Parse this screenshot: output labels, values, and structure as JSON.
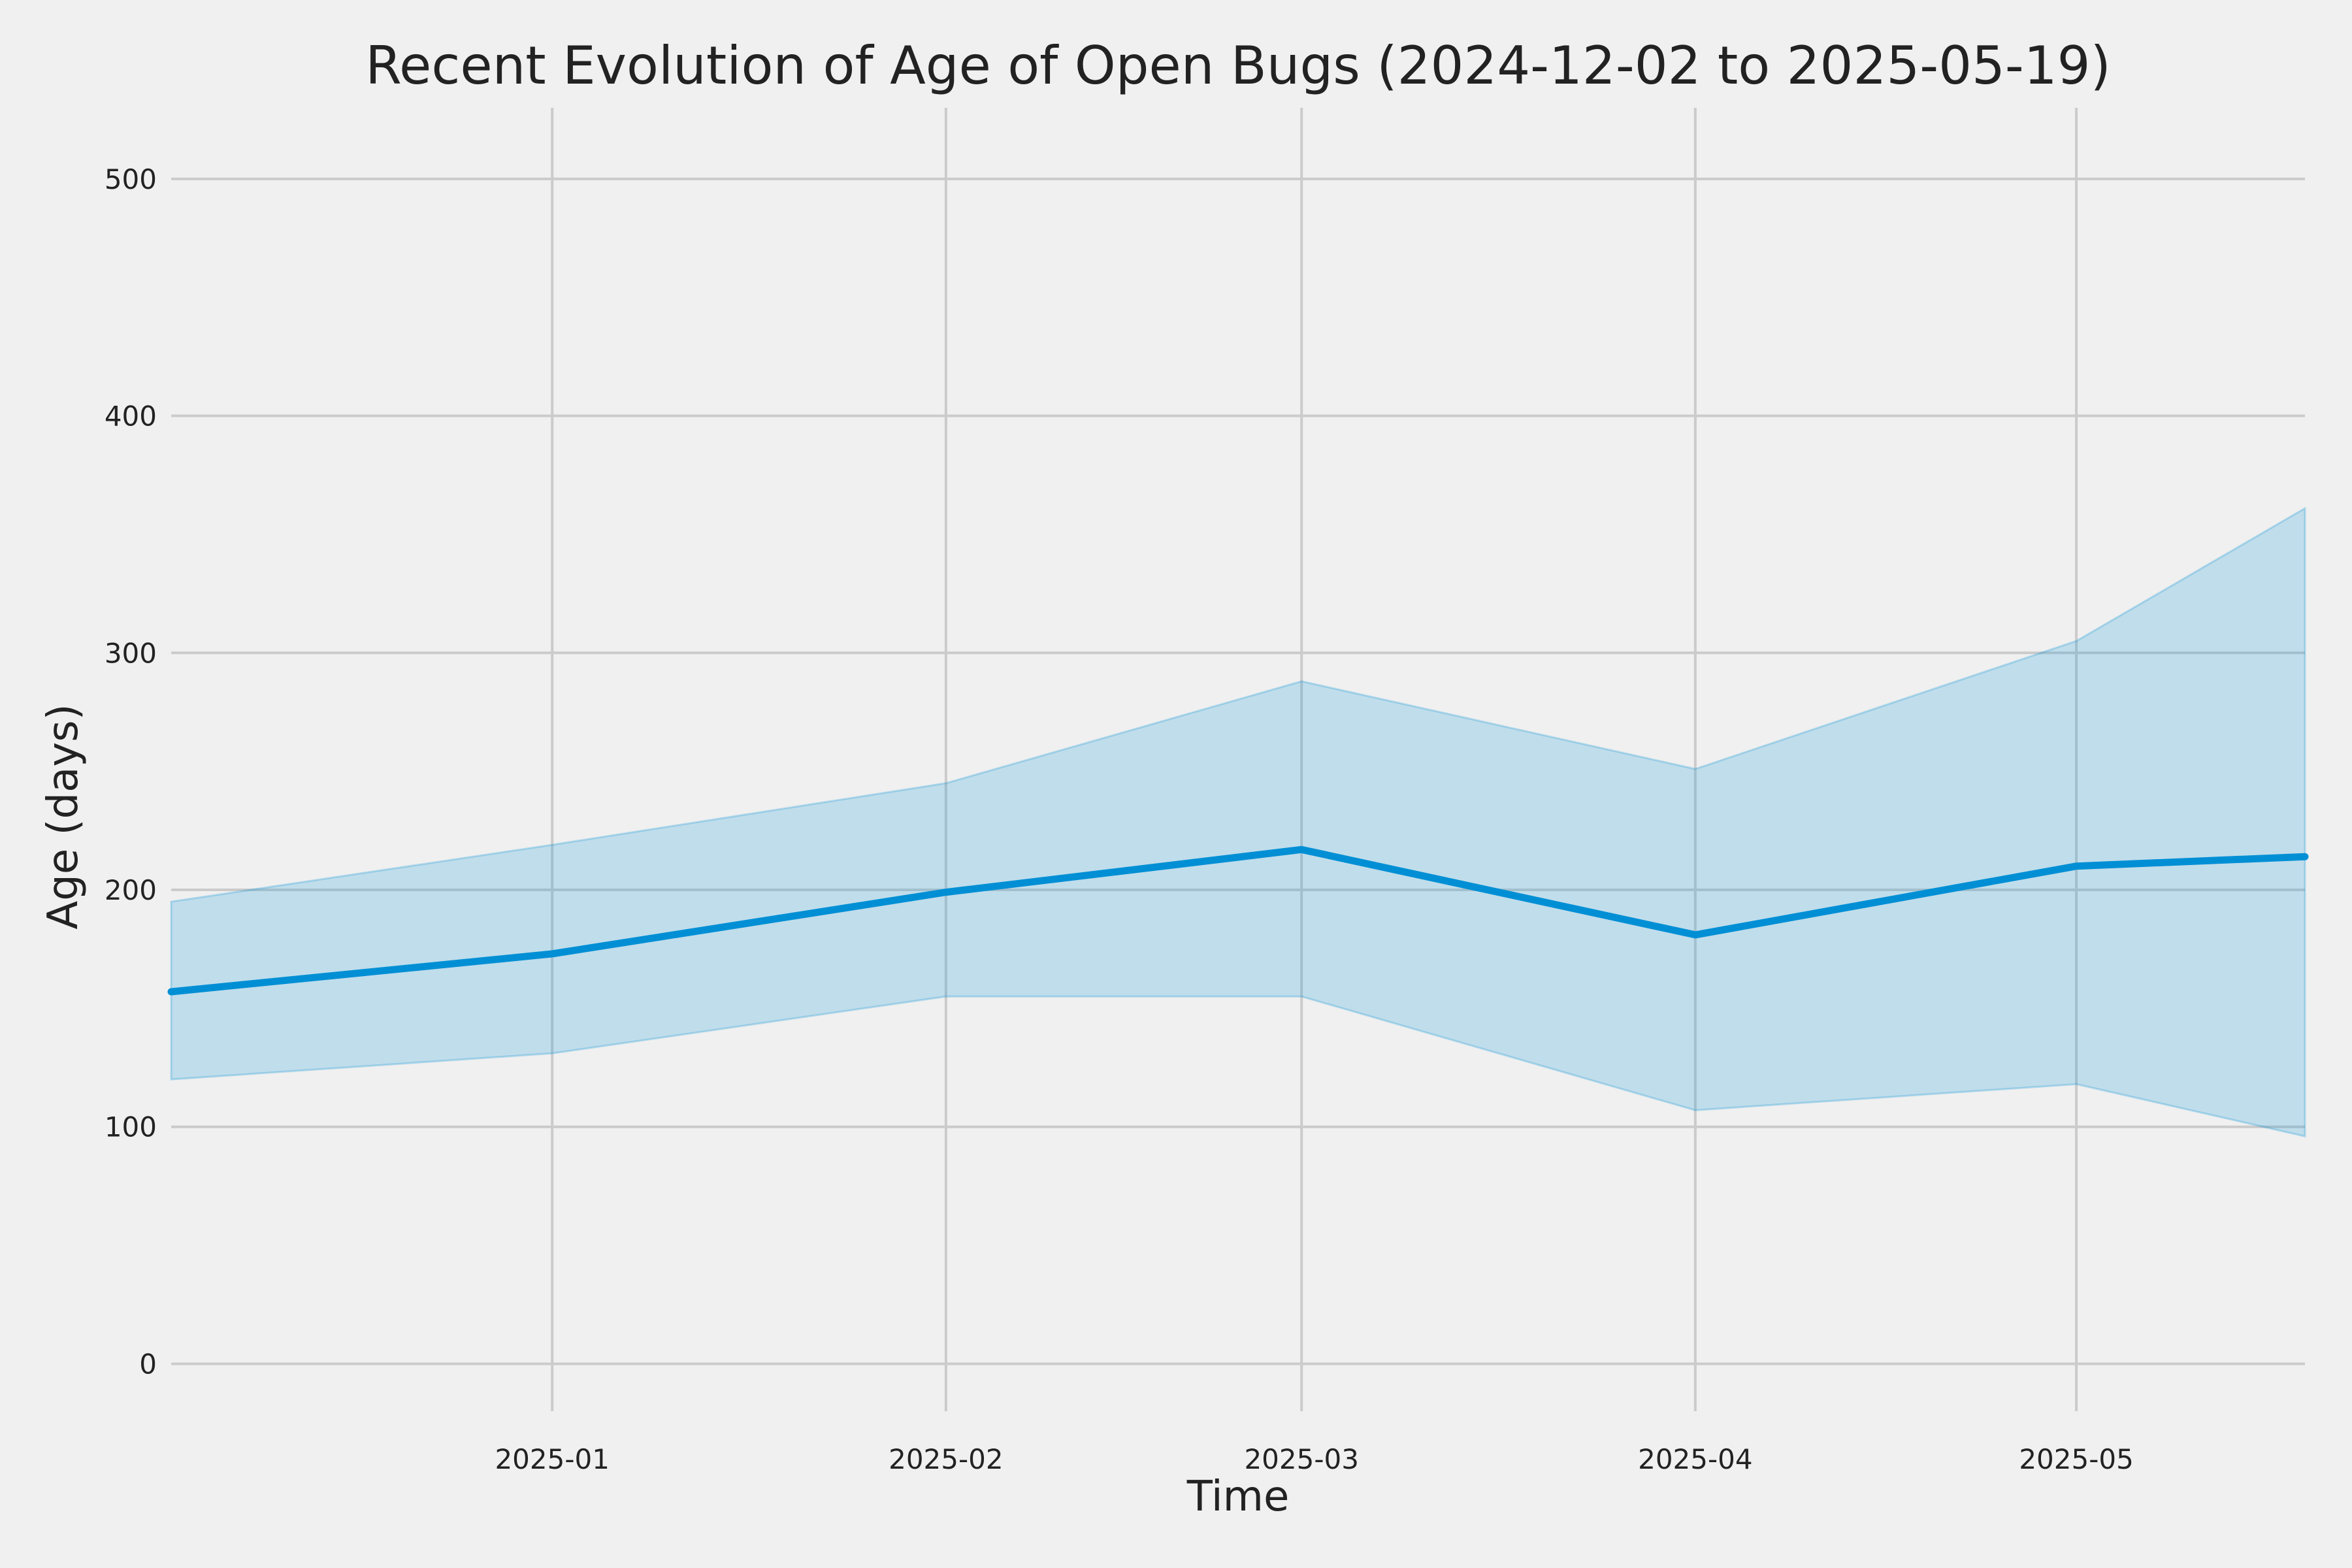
{
  "chart_data": {
    "type": "line",
    "title": "Recent Evolution of Age of Open Bugs (2024-12-02 to 2025-05-19)",
    "xlabel": "Time",
    "ylabel": "Age (days)",
    "x": [
      "2024-12-02",
      "2025-01-01",
      "2025-02-01",
      "2025-03-01",
      "2025-04-01",
      "2025-05-01",
      "2025-05-19"
    ],
    "series": [
      {
        "values": [
          157,
          173,
          199,
          217,
          181,
          210,
          214
        ],
        "lower": [
          120,
          131,
          155,
          155,
          107,
          118,
          96
        ],
        "upper": [
          195,
          219,
          245,
          288,
          251,
          305,
          361
        ]
      }
    ],
    "xticks": [
      "2025-01-01",
      "2025-02-01",
      "2025-03-01",
      "2025-04-01",
      "2025-05-01"
    ],
    "xtick_labels": [
      "2025-01",
      "2025-02",
      "2025-03",
      "2025-04",
      "2025-05"
    ],
    "yticks": [
      0,
      100,
      200,
      300,
      400,
      500
    ],
    "ytick_labels": [
      "0",
      "100",
      "200",
      "300",
      "400",
      "500"
    ],
    "xlim": [
      "2024-12-02",
      "2025-05-19"
    ],
    "ylim": [
      -20,
      530
    ],
    "grid": true,
    "colors": {
      "line": "#008fd5",
      "band": "#008fd5",
      "background": "#f0f0f0",
      "grid": "#cbcbcb",
      "text": "#222222"
    }
  }
}
